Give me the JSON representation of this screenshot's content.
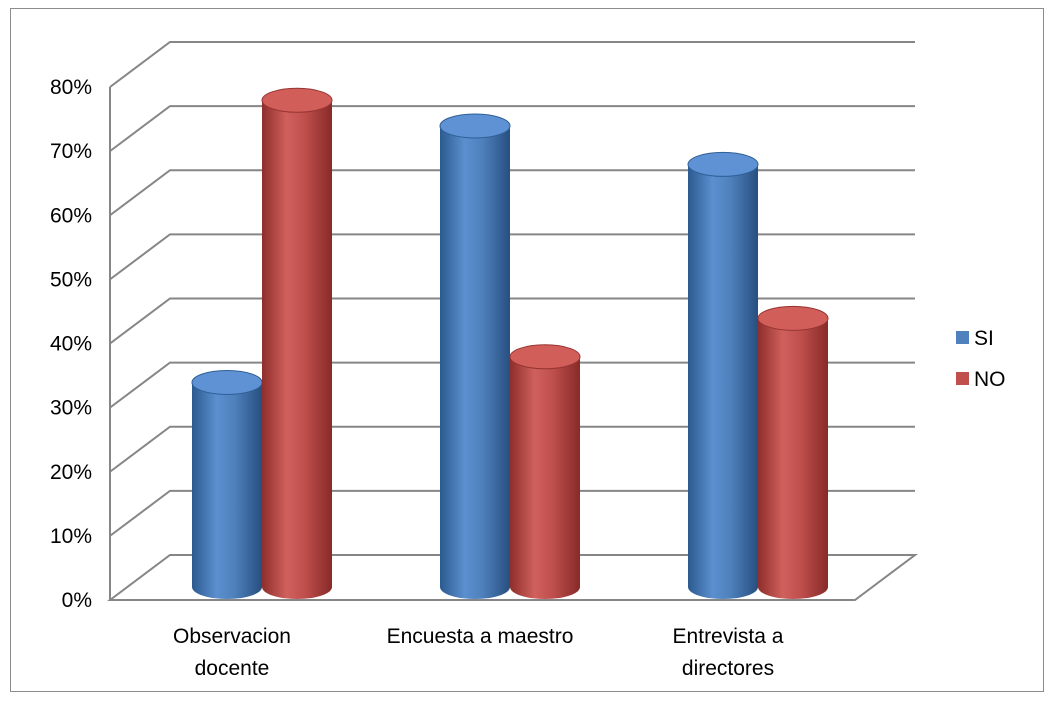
{
  "chart_data": {
    "type": "bar",
    "style": "3d-cylinder",
    "categories": [
      "Observacion docente",
      "Encuesta a maestro",
      "Entrevista a directores"
    ],
    "category_lines": [
      [
        "Observacion",
        "docente"
      ],
      [
        "Encuesta a maestro"
      ],
      [
        "Entrevista a",
        "directores"
      ]
    ],
    "series": [
      {
        "name": "SI",
        "values": [
          28,
          68,
          62
        ],
        "color": "#4F81BD"
      },
      {
        "name": "NO",
        "values": [
          72,
          32,
          38
        ],
        "color": "#C0504D"
      }
    ],
    "yticks": [
      "0%",
      "10%",
      "20%",
      "30%",
      "40%",
      "50%",
      "60%",
      "70%",
      "80%"
    ],
    "ylim": [
      0,
      80
    ],
    "unit": "%",
    "grid": true,
    "legend_position": "right",
    "title": "",
    "xlabel": "",
    "ylabel": ""
  }
}
